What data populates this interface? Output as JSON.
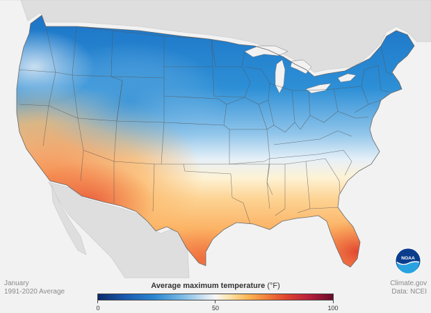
{
  "caption_left": {
    "month": "January",
    "period": "1991-2020 Average"
  },
  "caption_right": {
    "source": "Climate.gov",
    "data_credit": "Data: NCEI"
  },
  "legend": {
    "title": "Average maximum temperature",
    "unit": "(°F)",
    "min": 0,
    "max": 100,
    "ticks": [
      "0",
      "50",
      "100"
    ],
    "colors": [
      "#0c2a6b",
      "#1a5bb0",
      "#2a86d1",
      "#7bbbe6",
      "#f7f7f7",
      "#fcb454",
      "#f07e3b",
      "#e0452d",
      "#6a0b2c"
    ]
  },
  "logo": {
    "text": "NOAA"
  }
}
